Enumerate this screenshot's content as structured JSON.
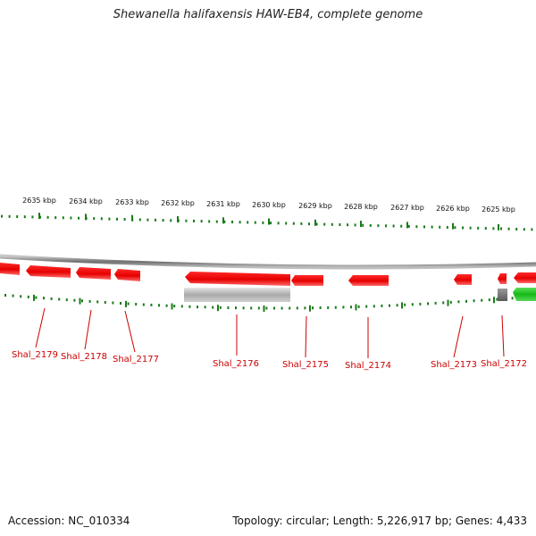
{
  "title": "Shewanella halifaxensis HAW-EB4, complete genome",
  "footer": {
    "accession": "Accession: NC_010334",
    "summary": "Topology: circular; Length: 5,226,917 bp; Genes: 4,433"
  },
  "colors": {
    "plus_strand_gene": "#ff0000",
    "minus_strand_gene": "#ff0000",
    "pseudo_gene": "#bbbbbb",
    "green_gene": "#22cc22",
    "tick": "#1a7a1a",
    "genome_line": "#888888",
    "label": "#cc0000"
  },
  "ruler": {
    "labels": [
      "2635 kbp",
      "2634 kbp",
      "2633 kbp",
      "2632 kbp",
      "2631 kbp",
      "2630 kbp",
      "2629 kbp",
      "2628 kbp",
      "2627 kbp",
      "2626 kbp",
      "2625 kbp"
    ]
  },
  "genes": [
    {
      "name": "Shal_2179"
    },
    {
      "name": "Shal_2178"
    },
    {
      "name": "Shal_2177"
    },
    {
      "name": "Shal_2176"
    },
    {
      "name": "Shal_2175"
    },
    {
      "name": "Shal_2174"
    },
    {
      "name": "Shal_2173"
    },
    {
      "name": "Shal_2172"
    }
  ]
}
